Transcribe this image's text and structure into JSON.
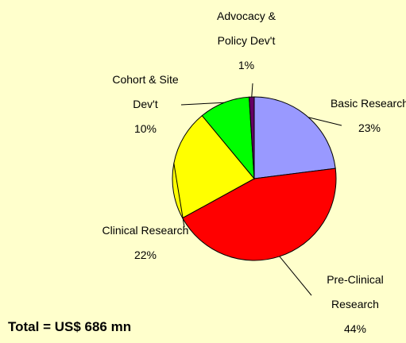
{
  "chart_data": {
    "type": "pie",
    "categories": [
      "Basic Research",
      "Pre-Clinical Research",
      "Clinical Research",
      "Cohort & Site Dev't",
      "Advocacy & Policy Dev't"
    ],
    "values": [
      23,
      44,
      22,
      10,
      1
    ],
    "value_labels": [
      "23%",
      "44%",
      "22%",
      "10%",
      "1%"
    ],
    "colors": [
      "#9999ff",
      "#ff0000",
      "#ffff00",
      "#00ff00",
      "#660066"
    ],
    "annotation": "Total = US$ 686 mn"
  }
}
